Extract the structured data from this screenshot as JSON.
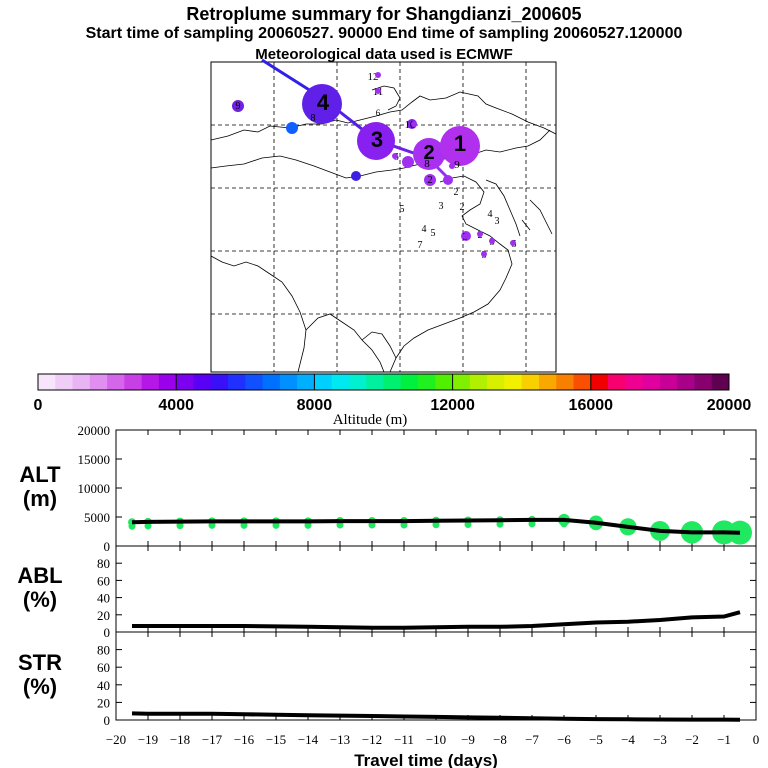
{
  "header": {
    "title": "Retroplume summary for Shangdianzi_200605",
    "line2": "Start time of sampling 20060527. 90000     End time of sampling 20060527.120000",
    "line3": "Meteorological data used is ECMWF"
  },
  "colorbar": {
    "label": "Altitude (m)",
    "ticks": [
      "0",
      "4000",
      "8000",
      "12000",
      "16000",
      "20000"
    ],
    "colors": [
      "#f7e6fb",
      "#f0cdf7",
      "#e8b4f4",
      "#e08ff0",
      "#d566ec",
      "#c93fe6",
      "#b517e8",
      "#9a00ec",
      "#7d00f0",
      "#5a00f5",
      "#3a10f8",
      "#2030ff",
      "#1050ff",
      "#0070ff",
      "#0090ff",
      "#00b0ff",
      "#00d0ff",
      "#00e8f0",
      "#00f0d0",
      "#00f0a0",
      "#00f070",
      "#00f040",
      "#20f020",
      "#50f000",
      "#80f000",
      "#b0f000",
      "#d8f000",
      "#f0f000",
      "#f8d000",
      "#f8a800",
      "#f88000",
      "#f85000",
      "#f00000",
      "#f80070",
      "#f00090",
      "#e000a0",
      "#c80098",
      "#a80088",
      "#880070",
      "#600050"
    ]
  },
  "map": {
    "tracers": [
      {
        "label": "4",
        "color": "#6020e8"
      },
      {
        "label": "3",
        "color": "#8820f0"
      },
      {
        "label": "2",
        "color": "#a830f0"
      },
      {
        "label": "1",
        "color": "#b030ee"
      },
      {
        "label": "12",
        "color": "#a020f0"
      },
      {
        "label": "11",
        "color": "#9020f0"
      },
      {
        "label": "10",
        "color": "#8020e8"
      },
      {
        "label": "9",
        "color": "#7020e0"
      },
      {
        "label": "8",
        "color": "#5020e0"
      },
      {
        "label": "7",
        "color": "#1060ff"
      },
      {
        "label": "6",
        "color": "#4020e0"
      },
      {
        "label": "5",
        "color": "#a020f0"
      }
    ]
  },
  "chart_data": [
    {
      "type": "line",
      "title": "",
      "ylabel": "ALT\n(m)",
      "ylabel_lines": [
        "ALT",
        "(m)"
      ],
      "ylim": [
        0,
        20000
      ],
      "yticks": [
        "0",
        "5000",
        "10000",
        "15000",
        "20000"
      ],
      "x": [
        -19.5,
        -19,
        -18,
        -17,
        -16,
        -15,
        -14,
        -13,
        -12,
        -11,
        -10,
        -9,
        -8,
        -7,
        -6,
        -5,
        -4,
        -3,
        -2,
        -1,
        -0.5
      ],
      "values": [
        4100,
        4150,
        4200,
        4250,
        4250,
        4250,
        4250,
        4300,
        4300,
        4300,
        4350,
        4400,
        4450,
        4500,
        4500,
        4000,
        3300,
        2600,
        2350,
        2350,
        2300
      ],
      "xlim": [
        -20,
        0
      ]
    },
    {
      "type": "line",
      "title": "",
      "ylabel": "ABL\n(%)",
      "ylabel_lines": [
        "ABL",
        "(%)"
      ],
      "ylim": [
        0,
        100
      ],
      "yticks": [
        "0",
        "20",
        "40",
        "60",
        "80"
      ],
      "x": [
        -19.5,
        -19,
        -18,
        -17,
        -16,
        -15,
        -14,
        -13,
        -12,
        -11,
        -10,
        -9,
        -8,
        -7,
        -6,
        -5,
        -4,
        -3,
        -2,
        -1,
        -0.5
      ],
      "values": [
        7,
        7,
        7,
        7,
        7,
        6.5,
        6,
        5.5,
        5,
        5,
        5.5,
        6,
        6,
        7,
        9,
        11,
        12,
        14,
        17,
        18,
        23
      ],
      "xlim": [
        -20,
        0
      ]
    },
    {
      "type": "line",
      "title": "",
      "ylabel": "STR\n(%)",
      "ylabel_lines": [
        "STR",
        "(%)"
      ],
      "ylim": [
        0,
        100
      ],
      "yticks": [
        "0",
        "20",
        "40",
        "60",
        "80"
      ],
      "x": [
        -19.5,
        -19,
        -18,
        -17,
        -16,
        -15,
        -14,
        -13,
        -12,
        -11,
        -10,
        -9,
        -8,
        -7,
        -6,
        -5,
        -4,
        -3,
        -2,
        -1,
        -0.5
      ],
      "values": [
        7.5,
        7,
        7,
        7,
        6.5,
        6,
        5.5,
        5,
        4.5,
        4,
        3.5,
        3,
        2.5,
        2,
        1.5,
        1,
        0.8,
        0.6,
        0.5,
        0.4,
        0.3
      ],
      "xlim": [
        -20,
        0
      ],
      "xlabel": "Travel time (days)",
      "xticks": [
        "-20",
        "-19",
        "-18",
        "-17",
        "-16",
        "-15",
        "-14",
        "-13",
        "-12",
        "-11",
        "-10",
        "-9",
        "-8",
        "-7",
        "-6",
        "-5",
        "-4",
        "-3",
        "-2",
        "-1",
        "0"
      ]
    }
  ]
}
